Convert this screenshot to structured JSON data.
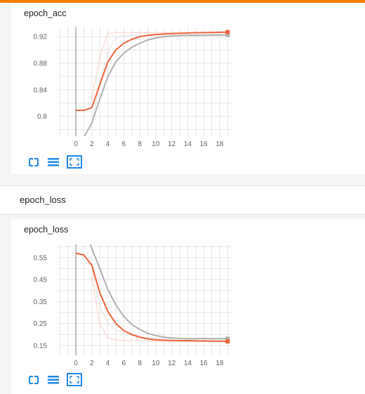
{
  "colors": {
    "accent": "#f57c00",
    "series_orange": "#f0623a",
    "series_gray": "#b0b0b0"
  },
  "icons": [
    "fit-domain-icon",
    "toggle-log-scale-icon",
    "expand-chart-icon"
  ],
  "section": {
    "title": "epoch_loss"
  },
  "chart_data": [
    {
      "type": "line",
      "title": "epoch_acc",
      "xticks": [
        "0",
        "2",
        "4",
        "6",
        "8",
        "10",
        "12",
        "14",
        "16",
        "18"
      ],
      "yticks": [
        "0.8",
        "0.84",
        "0.88",
        "0.92"
      ],
      "xlim": [
        -2.2,
        19.5
      ],
      "ylim": [
        0.77,
        0.935
      ],
      "grid": true,
      "series": [
        {
          "x": [
            0,
            1,
            2,
            3,
            4,
            5,
            6,
            7,
            8,
            9,
            10,
            11,
            12,
            13,
            14,
            15,
            16,
            17,
            18,
            19
          ],
          "y": [
            0.809,
            0.809,
            0.813,
            0.848,
            0.882,
            0.9,
            0.91,
            0.916,
            0.92,
            0.922,
            0.923,
            0.924,
            0.9245,
            0.925,
            0.9255,
            0.926,
            0.926,
            0.9262,
            0.9265,
            0.9268
          ]
        },
        {
          "x": [
            1,
            2,
            3,
            4,
            5,
            6,
            7,
            8,
            9,
            10,
            11,
            12,
            13,
            14,
            15,
            16,
            17,
            18,
            19
          ],
          "y": [
            0.768,
            0.79,
            0.826,
            0.86,
            0.882,
            0.895,
            0.904,
            0.91,
            0.915,
            0.918,
            0.92,
            0.921,
            0.9215,
            0.922,
            0.9222,
            0.922,
            0.9225,
            0.9225,
            0.9225
          ]
        },
        {
          "x": [
            2,
            3,
            4,
            5,
            6,
            7,
            8,
            9,
            10,
            11,
            12,
            13,
            14,
            15,
            16,
            17,
            18,
            19
          ],
          "y": [
            0.825,
            0.89,
            0.925,
            0.926,
            0.926,
            0.926,
            0.926,
            0.926,
            0.926,
            0.926,
            0.926,
            0.926,
            0.926,
            0.926,
            0.926,
            0.926,
            0.926,
            0.927
          ]
        },
        {
          "x": [
            2,
            3,
            4,
            5,
            6,
            7,
            8,
            9,
            10,
            11,
            12,
            13,
            14,
            15,
            16,
            17,
            18,
            19
          ],
          "y": [
            0.79,
            0.85,
            0.898,
            0.918,
            0.921,
            0.922,
            0.922,
            0.922,
            0.922,
            0.922,
            0.922,
            0.922,
            0.922,
            0.922,
            0.922,
            0.922,
            0.922,
            0.922
          ]
        }
      ]
    },
    {
      "type": "line",
      "title": "epoch_loss",
      "xticks": [
        "0",
        "2",
        "4",
        "6",
        "8",
        "10",
        "12",
        "14",
        "16",
        "18"
      ],
      "yticks": [
        "0.15",
        "0.25",
        "0.35",
        "0.45",
        "0.55"
      ],
      "xlim": [
        -2.2,
        19.5
      ],
      "ylim": [
        0.105,
        0.61
      ],
      "grid": true,
      "series": [
        {
          "x": [
            0,
            1,
            2,
            3,
            4,
            5,
            6,
            7,
            8,
            9,
            10,
            11,
            12,
            13,
            14,
            15,
            16,
            17,
            18,
            19
          ],
          "y": [
            0.57,
            0.562,
            0.515,
            0.39,
            0.305,
            0.25,
            0.218,
            0.2,
            0.188,
            0.18,
            0.176,
            0.174,
            0.173,
            0.172,
            0.172,
            0.171,
            0.171,
            0.17,
            0.17,
            0.169
          ]
        },
        {
          "x": [
            1.8,
            3,
            4,
            5,
            6,
            7,
            8,
            9,
            10,
            11,
            12,
            13,
            14,
            15,
            16,
            17,
            18,
            19
          ],
          "y": [
            0.61,
            0.5,
            0.405,
            0.335,
            0.283,
            0.246,
            0.223,
            0.205,
            0.195,
            0.188,
            0.184,
            0.182,
            0.181,
            0.181,
            0.182,
            0.181,
            0.181,
            0.181
          ]
        },
        {
          "x": [
            2,
            3,
            4,
            5,
            6,
            7,
            8,
            9,
            10,
            11,
            12,
            13,
            14,
            15,
            16,
            17,
            18,
            19
          ],
          "y": [
            0.46,
            0.25,
            0.185,
            0.176,
            0.173,
            0.172,
            0.171,
            0.17,
            0.17,
            0.169,
            0.169,
            0.169,
            0.168,
            0.168,
            0.168,
            0.168,
            0.168,
            0.167
          ]
        },
        {
          "x": [
            2,
            3,
            4,
            5,
            6,
            7,
            8,
            9,
            10,
            11,
            12,
            13,
            14,
            15,
            16,
            17,
            18,
            19
          ],
          "y": [
            0.5,
            0.33,
            0.25,
            0.22,
            0.205,
            0.195,
            0.189,
            0.186,
            0.184,
            0.183,
            0.182,
            0.182,
            0.182,
            0.182,
            0.182,
            0.182,
            0.182,
            0.182
          ]
        }
      ]
    }
  ]
}
